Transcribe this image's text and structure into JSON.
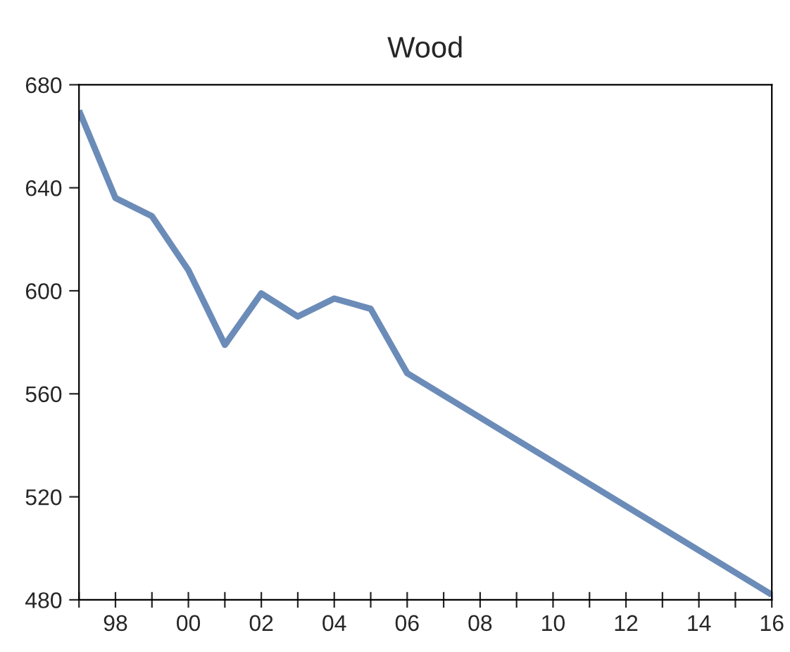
{
  "chart_data": {
    "type": "line",
    "title": "Wood",
    "x": [
      1997,
      1998,
      1999,
      2000,
      2001,
      2002,
      2003,
      2004,
      2005,
      2006,
      2016
    ],
    "series": [
      {
        "color": "#6b8cb8",
        "values": [
          670,
          636,
          629,
          608,
          579,
          599,
          590,
          597,
          593,
          568,
          482
        ]
      }
    ],
    "xlim": [
      1997,
      2016
    ],
    "xticks": [
      {
        "value": 1997,
        "label": null
      },
      {
        "value": 1998,
        "label": "98"
      },
      {
        "value": 1999,
        "label": null
      },
      {
        "value": 2000,
        "label": "00"
      },
      {
        "value": 2001,
        "label": null
      },
      {
        "value": 2002,
        "label": "02"
      },
      {
        "value": 2003,
        "label": null
      },
      {
        "value": 2004,
        "label": "04"
      },
      {
        "value": 2005,
        "label": null
      },
      {
        "value": 2006,
        "label": "06"
      },
      {
        "value": 2007,
        "label": null
      },
      {
        "value": 2008,
        "label": "08"
      },
      {
        "value": 2009,
        "label": null
      },
      {
        "value": 2010,
        "label": "10"
      },
      {
        "value": 2011,
        "label": null
      },
      {
        "value": 2012,
        "label": "12"
      },
      {
        "value": 2013,
        "label": null
      },
      {
        "value": 2014,
        "label": "14"
      },
      {
        "value": 2015,
        "label": null
      },
      {
        "value": 2016,
        "label": "16"
      }
    ],
    "ylim": [
      480,
      680
    ],
    "yticks": [
      480,
      520,
      560,
      600,
      640,
      680
    ],
    "grid": false,
    "line_style": "solid",
    "marker": "none"
  }
}
